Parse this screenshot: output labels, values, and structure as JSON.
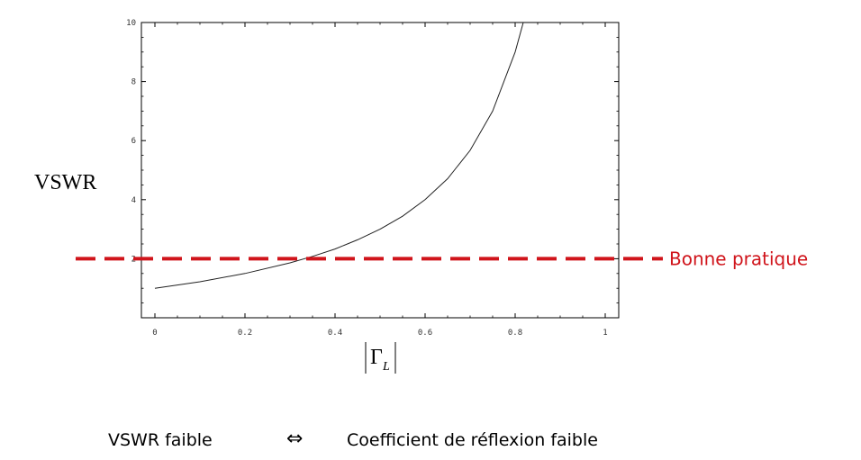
{
  "chart_data": {
    "type": "line",
    "xlabel": "|Γ_L|",
    "ylabel": "VSWR",
    "xlim": [
      -0.03,
      1.03
    ],
    "ylim": [
      0.0,
      10.0
    ],
    "x_ticks": [
      "0",
      "0.2",
      "0.4",
      "0.6",
      "0.8",
      "1"
    ],
    "y_ticks": [
      "2",
      "4",
      "6",
      "8",
      "10"
    ],
    "grid": false,
    "series": [
      {
        "x": [
          0,
          0.1,
          0.2,
          0.3,
          0.35,
          0.4,
          0.45,
          0.5,
          0.55,
          0.6,
          0.65,
          0.7,
          0.75,
          0.8,
          0.818
        ],
        "y": [
          1.0,
          1.22,
          1.5,
          1.86,
          2.08,
          2.33,
          2.64,
          3.0,
          3.44,
          4.0,
          4.71,
          5.67,
          7.0,
          9.0,
          10.0
        ]
      }
    ],
    "reference_line": {
      "y": 2,
      "label": "Bonne pratique",
      "color": "#d0141b",
      "style": "dashed"
    }
  },
  "caption": {
    "left": "VSWR faible",
    "symbol": "⇔",
    "right": "Coefficient de réflexion faible"
  }
}
